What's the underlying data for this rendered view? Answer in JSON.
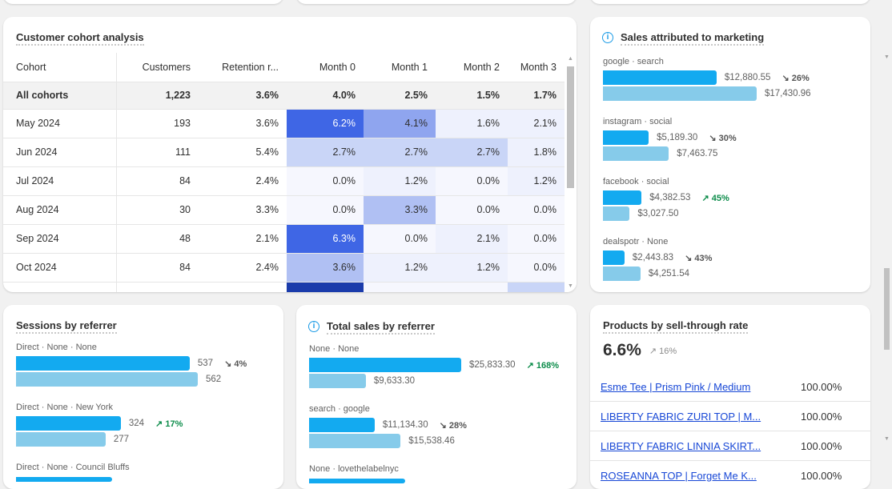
{
  "cohort": {
    "title": "Customer cohort analysis",
    "headers": [
      "Cohort",
      "Customers",
      "Retention r...",
      "Month 0",
      "Month 1",
      "Month 2",
      "Month 3"
    ],
    "rows": [
      {
        "cohort": "All cohorts",
        "customers": "1,223",
        "retention": "3.6%",
        "months": [
          "4.0%",
          "2.5%",
          "1.5%",
          "1.7%"
        ],
        "shade": [
          0,
          0,
          0,
          0
        ]
      },
      {
        "cohort": "May 2024",
        "customers": "193",
        "retention": "3.6%",
        "months": [
          "6.2%",
          "4.1%",
          "1.6%",
          "2.1%"
        ],
        "shade": [
          4,
          3,
          1,
          1
        ]
      },
      {
        "cohort": "Jun 2024",
        "customers": "111",
        "retention": "5.4%",
        "months": [
          "2.7%",
          "2.7%",
          "2.7%",
          "1.8%"
        ],
        "shade": [
          2,
          2,
          2,
          1
        ]
      },
      {
        "cohort": "Jul 2024",
        "customers": "84",
        "retention": "2.4%",
        "months": [
          "0.0%",
          "1.2%",
          "0.0%",
          "1.2%"
        ],
        "shade": [
          0.5,
          1,
          0.5,
          1
        ]
      },
      {
        "cohort": "Aug 2024",
        "customers": "30",
        "retention": "3.3%",
        "months": [
          "0.0%",
          "3.3%",
          "0.0%",
          "0.0%"
        ],
        "shade": [
          0.5,
          2.5,
          0.5,
          0.5
        ]
      },
      {
        "cohort": "Sep 2024",
        "customers": "48",
        "retention": "2.1%",
        "months": [
          "6.3%",
          "0.0%",
          "2.1%",
          "0.0%"
        ],
        "shade": [
          4,
          0.5,
          1,
          0.5
        ]
      },
      {
        "cohort": "Oct 2024",
        "customers": "84",
        "retention": "2.4%",
        "months": [
          "3.6%",
          "1.2%",
          "1.2%",
          "0.0%"
        ],
        "shade": [
          2.5,
          1,
          1,
          0.5
        ]
      }
    ]
  },
  "marketing": {
    "title": "Sales attributed to marketing",
    "max": 17430.96,
    "items": [
      {
        "label": "google · search",
        "current": 12880.55,
        "current_text": "$12,880.55",
        "previous": 17430.96,
        "previous_text": "$17,430.96",
        "change": "26%",
        "dir": "down"
      },
      {
        "label": "instagram · social",
        "current": 5189.3,
        "current_text": "$5,189.30",
        "previous": 7463.75,
        "previous_text": "$7,463.75",
        "change": "30%",
        "dir": "down"
      },
      {
        "label": "facebook · social",
        "current": 4382.53,
        "current_text": "$4,382.53",
        "previous": 3027.5,
        "previous_text": "$3,027.50",
        "change": "45%",
        "dir": "up"
      },
      {
        "label": "dealspotr · None",
        "current": 2443.83,
        "current_text": "$2,443.83",
        "previous": 4251.54,
        "previous_text": "$4,251.54",
        "change": "43%",
        "dir": "down"
      }
    ]
  },
  "sessions": {
    "title": "Sessions by referrer",
    "max": 562,
    "items": [
      {
        "label": "Direct · None · None",
        "current": 537,
        "current_text": "537",
        "previous": 562,
        "previous_text": "562",
        "change": "4%",
        "dir": "down"
      },
      {
        "label": "Direct · None · New York",
        "current": 324,
        "current_text": "324",
        "previous": 277,
        "previous_text": "277",
        "change": "17%",
        "dir": "up"
      },
      {
        "label": "Direct · None · Council Bluffs"
      }
    ]
  },
  "referrer_sales": {
    "title": "Total sales by referrer",
    "max": 25833.3,
    "items": [
      {
        "label": "None · None",
        "current": 25833.3,
        "current_text": "$25,833.30",
        "previous": 9633.3,
        "previous_text": "$9,633.30",
        "change": "168%",
        "dir": "up"
      },
      {
        "label": "search · google",
        "current": 11134.3,
        "current_text": "$11,134.30",
        "previous": 15538.46,
        "previous_text": "$15,538.46",
        "change": "28%",
        "dir": "down"
      },
      {
        "label": "None · lovethelabelnyc"
      }
    ]
  },
  "products": {
    "title": "Products by sell-through rate",
    "value": "6.6%",
    "change": "16%",
    "items": [
      {
        "name": "Esme Tee | Prism Pink / Medium",
        "rate": "100.00%"
      },
      {
        "name": "LIBERTY FABRIC ZURI TOP | M...",
        "rate": "100.00%"
      },
      {
        "name": "LIBERTY FABRIC LINNIA SKIRT...",
        "rate": "100.00%"
      },
      {
        "name": "ROSEANNA TOP | Forget Me K...",
        "rate": "100.00%"
      }
    ]
  },
  "colors": {
    "current_bar": "#13aaf0",
    "previous_bar": "#86cbea",
    "up": "#0c8c4a",
    "link": "#1747d6"
  }
}
